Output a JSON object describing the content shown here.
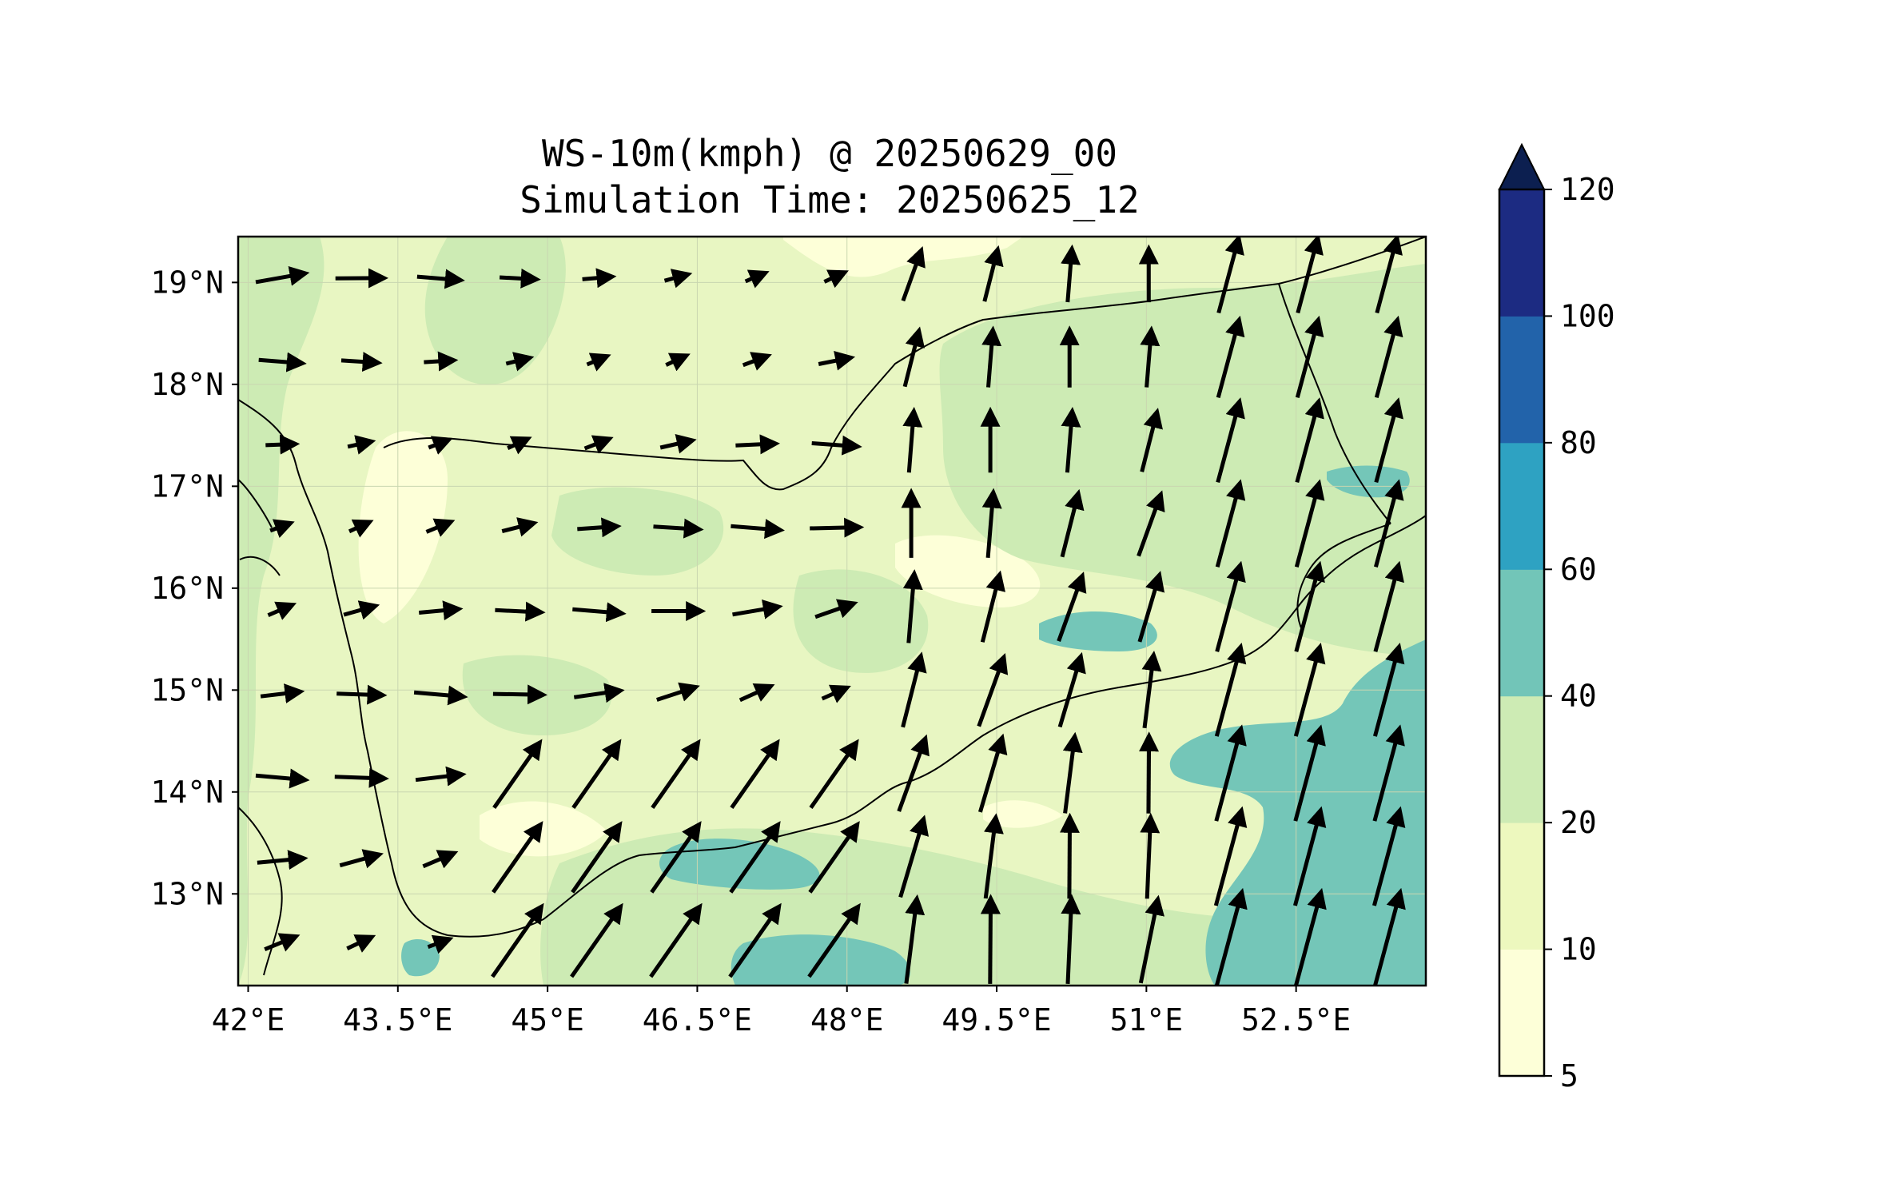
{
  "title": {
    "line1": "WS-10m(kmph) @ 20250629_00",
    "line2": "Simulation Time: 20250625_12"
  },
  "map": {
    "x_ticks": [
      "42°E",
      "43.5°E",
      "45°E",
      "46.5°E",
      "48°E",
      "49.5°E",
      "51°E",
      "52.5°E"
    ],
    "y_ticks": [
      "19°N",
      "18°N",
      "17°N",
      "16°N",
      "15°N",
      "14°N",
      "13°N"
    ],
    "x_tick_values": [
      42,
      43.5,
      45,
      46.5,
      48,
      49.5,
      51,
      52.5
    ],
    "y_tick_values": [
      19,
      18,
      17,
      16,
      15,
      14,
      13
    ],
    "lon_range": [
      41.9,
      53.8
    ],
    "lat_range": [
      12.1,
      19.45
    ],
    "base_color": "#e8f6c2",
    "feature_colors": {
      "land_outline": "#000000",
      "high_wind_band": "#74c6b8"
    }
  },
  "colorbar": {
    "levels": [
      "5",
      "10",
      "20",
      "40",
      "60",
      "80",
      "100",
      "120"
    ],
    "bins": [
      {
        "from": 5,
        "to": 10,
        "color": "#fdffd8"
      },
      {
        "from": 10,
        "to": 20,
        "color": "#edf8be"
      },
      {
        "from": 20,
        "to": 40,
        "color": "#cdebb4"
      },
      {
        "from": 40,
        "to": 60,
        "color": "#72c5b8"
      },
      {
        "from": 60,
        "to": 80,
        "color": "#2ea2c2"
      },
      {
        "from": 80,
        "to": 100,
        "color": "#2263aa"
      },
      {
        "from": 100,
        "to": 120,
        "color": "#1c2b82"
      }
    ],
    "extend_color": "#0c1f50",
    "extend": "max"
  }
}
